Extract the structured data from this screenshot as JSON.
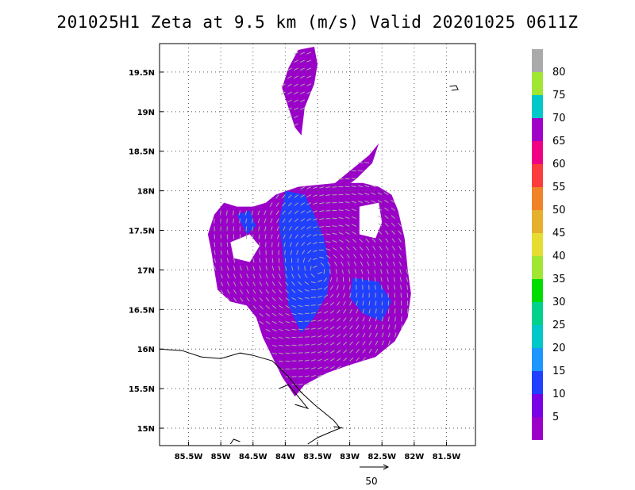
{
  "title": "201025H1 Zeta at 9.5 km (m/s) Valid 20201025 0611Z",
  "chart_data": {
    "type": "heatmap",
    "title": "201025H1 Zeta at 9.5 km (m/s) Valid 20201025 0611Z",
    "x_ticks": [
      {
        "value": -85.5,
        "label": "85.5W"
      },
      {
        "value": -85,
        "label": "85W"
      },
      {
        "value": -84.5,
        "label": "84.5W"
      },
      {
        "value": -84,
        "label": "84W"
      },
      {
        "value": -83.5,
        "label": "83.5W"
      },
      {
        "value": -83,
        "label": "83W"
      },
      {
        "value": -82.5,
        "label": "82.5W"
      },
      {
        "value": -82,
        "label": "82W"
      },
      {
        "value": -81.5,
        "label": "81.5W"
      }
    ],
    "y_ticks": [
      {
        "value": 15,
        "label": "15N"
      },
      {
        "value": 15.5,
        "label": "15.5N"
      },
      {
        "value": 16,
        "label": "16N"
      },
      {
        "value": 16.5,
        "label": "16.5N"
      },
      {
        "value": 17,
        "label": "17N"
      },
      {
        "value": 17.5,
        "label": "17.5N"
      },
      {
        "value": 18,
        "label": "18N"
      },
      {
        "value": 18.5,
        "label": "18.5N"
      },
      {
        "value": 19,
        "label": "19N"
      },
      {
        "value": 19.5,
        "label": "19.5N"
      }
    ],
    "xlim": [
      -85.95,
      -81.05
    ],
    "ylim": [
      14.78,
      19.86
    ],
    "grid": true,
    "colorbar": {
      "labels": [
        "5",
        "10",
        "15",
        "20",
        "25",
        "30",
        "35",
        "40",
        "45",
        "50",
        "55",
        "60",
        "65",
        "70",
        "75",
        "80"
      ],
      "colors": [
        "#9a00c8",
        "#7a00e6",
        "#2040ff",
        "#1e96ff",
        "#00c8c8",
        "#00d28c",
        "#00dc00",
        "#a0e632",
        "#e6dc32",
        "#e6af2d",
        "#f08228",
        "#fa3c3c",
        "#f00082",
        "#a000c8",
        "#00c8c8",
        "#a0e632",
        "#aaaaaa"
      ]
    },
    "field_regions": [
      {
        "name": "main-storm-region",
        "value_class": "5",
        "outline": [
          [
            -84.15,
            17.95
          ],
          [
            -83.8,
            18.05
          ],
          [
            -83.2,
            18.1
          ],
          [
            -82.8,
            18.1
          ],
          [
            -82.55,
            18.05
          ],
          [
            -82.35,
            17.95
          ],
          [
            -82.25,
            17.75
          ],
          [
            -82.15,
            17.4
          ],
          [
            -82.1,
            17.0
          ],
          [
            -82.05,
            16.7
          ],
          [
            -82.1,
            16.4
          ],
          [
            -82.3,
            16.1
          ],
          [
            -82.6,
            15.9
          ],
          [
            -83.0,
            15.8
          ],
          [
            -83.35,
            15.7
          ],
          [
            -83.7,
            15.55
          ],
          [
            -83.85,
            15.4
          ],
          [
            -84.05,
            15.65
          ],
          [
            -84.2,
            15.9
          ],
          [
            -84.35,
            16.15
          ],
          [
            -84.45,
            16.4
          ],
          [
            -84.6,
            16.55
          ],
          [
            -84.85,
            16.6
          ],
          [
            -85.05,
            16.75
          ],
          [
            -85.1,
            17.0
          ],
          [
            -85.15,
            17.25
          ],
          [
            -85.2,
            17.45
          ],
          [
            -85.1,
            17.7
          ],
          [
            -84.95,
            17.85
          ],
          [
            -84.75,
            17.8
          ],
          [
            -84.5,
            17.8
          ],
          [
            -84.3,
            17.85
          ]
        ]
      },
      {
        "name": "northern-band",
        "value_class": "5",
        "outline": [
          [
            -83.8,
            19.78
          ],
          [
            -83.55,
            19.82
          ],
          [
            -83.5,
            19.6
          ],
          [
            -83.55,
            19.35
          ],
          [
            -83.7,
            19.05
          ],
          [
            -83.75,
            18.7
          ],
          [
            -83.85,
            18.8
          ],
          [
            -83.95,
            19.05
          ],
          [
            -84.05,
            19.3
          ],
          [
            -83.95,
            19.55
          ]
        ]
      },
      {
        "name": "northeast-spur",
        "value_class": "5",
        "outline": [
          [
            -83.3,
            18.05
          ],
          [
            -83.0,
            18.25
          ],
          [
            -82.7,
            18.45
          ],
          [
            -82.55,
            18.6
          ],
          [
            -82.65,
            18.35
          ],
          [
            -82.9,
            18.15
          ],
          [
            -83.15,
            18.0
          ]
        ]
      },
      {
        "name": "blue-center",
        "value_class": "10",
        "outline": [
          [
            -84.0,
            18.0
          ],
          [
            -83.7,
            17.95
          ],
          [
            -83.55,
            17.7
          ],
          [
            -83.4,
            17.4
          ],
          [
            -83.3,
            17.0
          ],
          [
            -83.35,
            16.7
          ],
          [
            -83.55,
            16.4
          ],
          [
            -83.75,
            16.2
          ],
          [
            -83.95,
            16.55
          ],
          [
            -84.0,
            16.9
          ],
          [
            -84.05,
            17.3
          ],
          [
            -84.1,
            17.6
          ]
        ]
      },
      {
        "name": "blue-east",
        "value_class": "10",
        "outline": [
          [
            -82.95,
            16.9
          ],
          [
            -82.55,
            16.85
          ],
          [
            -82.35,
            16.6
          ],
          [
            -82.5,
            16.35
          ],
          [
            -82.8,
            16.45
          ],
          [
            -83.0,
            16.65
          ]
        ]
      },
      {
        "name": "blue-west",
        "value_class": "10",
        "outline": [
          [
            -84.75,
            17.7
          ],
          [
            -84.55,
            17.75
          ],
          [
            -84.45,
            17.55
          ],
          [
            -84.6,
            17.45
          ]
        ]
      },
      {
        "name": "hole-west",
        "value_class": "none",
        "outline": [
          [
            -84.85,
            17.35
          ],
          [
            -84.55,
            17.45
          ],
          [
            -84.4,
            17.3
          ],
          [
            -84.55,
            17.1
          ],
          [
            -84.8,
            17.15
          ]
        ]
      },
      {
        "name": "hole-northeast",
        "value_class": "none",
        "outline": [
          [
            -82.85,
            17.8
          ],
          [
            -82.55,
            17.85
          ],
          [
            -82.5,
            17.6
          ],
          [
            -82.6,
            17.4
          ],
          [
            -82.85,
            17.45
          ]
        ]
      }
    ],
    "coastline_segments": [
      [
        [
          -85.95,
          16.0
        ],
        [
          -85.6,
          15.98
        ],
        [
          -85.3,
          15.9
        ],
        [
          -85.0,
          15.88
        ],
        [
          -84.7,
          15.95
        ],
        [
          -84.5,
          15.92
        ],
        [
          -84.2,
          15.85
        ],
        [
          -83.95,
          15.65
        ],
        [
          -83.75,
          15.45
        ],
        [
          -83.55,
          15.3
        ],
        [
          -83.4,
          15.2
        ],
        [
          -83.25,
          15.1
        ],
        [
          -83.15,
          15.0
        ],
        [
          -83.3,
          14.95
        ],
        [
          -83.5,
          14.88
        ],
        [
          -83.65,
          14.8
        ]
      ],
      [
        [
          -84.1,
          15.5
        ],
        [
          -83.95,
          15.55
        ],
        [
          -83.8,
          15.4
        ],
        [
          -83.65,
          15.25
        ],
        [
          -83.85,
          15.3
        ]
      ],
      [
        [
          -83.1,
          15.0
        ],
        [
          -83.25,
          15.02
        ]
      ],
      [
        [
          -84.85,
          14.8
        ],
        [
          -84.8,
          14.86
        ],
        [
          -84.7,
          14.83
        ]
      ],
      [
        [
          -81.45,
          19.32
        ],
        [
          -81.35,
          19.33
        ],
        [
          -81.32,
          19.28
        ],
        [
          -81.42,
          19.27
        ]
      ]
    ],
    "vector_reference": {
      "label": "50",
      "magnitude": 50
    }
  }
}
